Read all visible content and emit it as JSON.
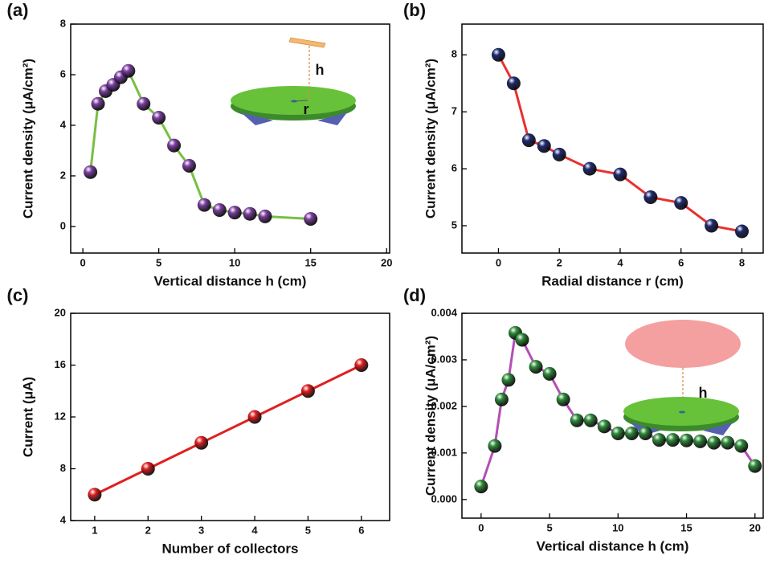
{
  "chart_data": [
    {
      "type": "scatter-line",
      "label": "(a)",
      "xlabel": "Vertical distance h (cm)",
      "ylabel": "Current density (μA/cm²)",
      "x": [
        0.5,
        1,
        1.5,
        2,
        2.5,
        3,
        4,
        5,
        6,
        7,
        8,
        9,
        10,
        11,
        12,
        15
      ],
      "values": [
        2.15,
        4.85,
        5.35,
        5.6,
        5.9,
        6.15,
        4.85,
        4.3,
        3.2,
        2.4,
        0.85,
        0.65,
        0.55,
        0.5,
        0.4,
        0.3
      ],
      "marker_color": "#7b3fa0",
      "line_color": "#77c043",
      "xlim": [
        -0.8,
        20.2
      ],
      "xticks": [
        0,
        5,
        10,
        15,
        20
      ],
      "ylim": [
        -1.05,
        8
      ],
      "yticks": [
        0,
        2,
        4,
        6,
        8
      ],
      "annotations": [
        "h",
        "r"
      ]
    },
    {
      "type": "scatter-line",
      "label": "(b)",
      "xlabel": "Radial distance r (cm)",
      "ylabel": "Current density (μA/cm²)",
      "x": [
        0,
        0.5,
        1,
        1.5,
        2,
        3,
        4,
        5,
        6,
        7,
        8
      ],
      "values": [
        8,
        7.5,
        6.5,
        6.4,
        6.25,
        6.0,
        5.9,
        5.5,
        5.4,
        5.0,
        4.9
      ],
      "marker_color": "#1e2a6e",
      "line_color": "#e83030",
      "xlim": [
        -1.2,
        8.7
      ],
      "xticks": [
        0,
        2,
        4,
        6,
        8
      ],
      "ylim": [
        4.52,
        8.54
      ],
      "yticks": [
        5,
        6,
        7,
        8
      ]
    },
    {
      "type": "scatter-line",
      "label": "(c)",
      "xlabel": "Number of collectors",
      "ylabel": "Current (μA)",
      "x": [
        1,
        2,
        3,
        4,
        5,
        6
      ],
      "values": [
        6,
        8,
        10,
        12,
        14,
        16
      ],
      "marker_color": "#e02020",
      "line_color": "#e02020",
      "xlim": [
        0.55,
        6.53
      ],
      "xticks": [
        1,
        2,
        3,
        4,
        5,
        6
      ],
      "ylim": [
        4,
        20
      ],
      "yticks": [
        4,
        8,
        12,
        16,
        20
      ]
    },
    {
      "type": "scatter-line",
      "label": "(d)",
      "xlabel": "Vertical distance h (cm)",
      "ylabel": "Current density (μA/cm²)",
      "x": [
        0,
        1,
        1.5,
        2,
        2.5,
        3,
        4,
        5,
        6,
        7,
        8,
        9,
        10,
        11,
        12,
        13,
        14,
        15,
        16,
        17,
        18,
        19,
        20
      ],
      "values": [
        0.00028,
        0.00115,
        0.00215,
        0.00257,
        0.00358,
        0.00343,
        0.00285,
        0.0027,
        0.00215,
        0.0017,
        0.0017,
        0.00157,
        0.00142,
        0.00142,
        0.00142,
        0.00128,
        0.00128,
        0.00127,
        0.00125,
        0.00122,
        0.00122,
        0.00115,
        0.00072
      ],
      "marker_color": "#2e8b3a",
      "line_color": "#b34fb3",
      "xlim": [
        -1.4,
        20.6
      ],
      "xticks": [
        0,
        5,
        10,
        15,
        20
      ],
      "ylim": [
        -0.0004,
        0.004
      ],
      "yticks": [
        {
          "value": 0,
          "label": "0.000"
        },
        0.001,
        0.002,
        0.003,
        0.004
      ],
      "annotations": [
        "h"
      ]
    }
  ]
}
